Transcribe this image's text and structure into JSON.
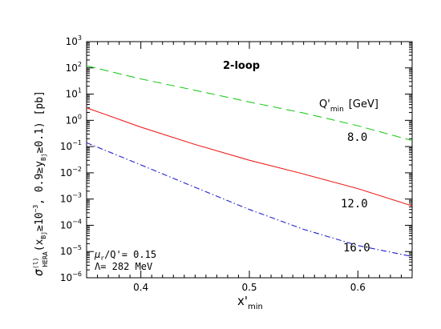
{
  "chart_data": {
    "type": "line",
    "title": "2-loop",
    "xlabel": {
      "main": "x'",
      "sub": "min"
    },
    "ylabel": {
      "sigma": "σ",
      "sup": "(l)",
      "sub": "HERA",
      "paren_open": "(x",
      "bj1": "Bj",
      "mid1": "≥10",
      "exp": "−3",
      "mid2": ",  0.9≥y",
      "bj2": "Bj",
      "end": "≥0.1)  [pb]"
    },
    "xlim": [
      0.35,
      0.65
    ],
    "ylim_exp": [
      -6,
      3
    ],
    "log_y": true,
    "x_ticks": [
      "0.4",
      "0.5",
      "0.6"
    ],
    "y_ticks_exp": [
      "−6",
      "−5",
      "−4",
      "−3",
      "−2",
      "−1",
      "0",
      "1",
      "2",
      "3"
    ],
    "legend_header": {
      "q": "Q'",
      "sub": "min",
      "unit": "[GeV]"
    },
    "series": [
      {
        "name": "8.0",
        "color": "#22cc22",
        "dash": "long-dash",
        "x": [
          0.35,
          0.4,
          0.45,
          0.5,
          0.55,
          0.6,
          0.65
        ],
        "y": [
          120,
          38,
          14,
          5,
          1.9,
          0.62,
          0.17
        ]
      },
      {
        "name": "12.0",
        "color": "#ee2222",
        "dash": "solid",
        "x": [
          0.35,
          0.4,
          0.45,
          0.5,
          0.55,
          0.6,
          0.65
        ],
        "y": [
          3.0,
          0.55,
          0.12,
          0.03,
          0.009,
          0.0025,
          0.00055
        ]
      },
      {
        "name": "16.0",
        "color": "#2222cc",
        "dash": "dash-dot",
        "x": [
          0.35,
          0.4,
          0.45,
          0.5,
          0.55,
          0.6,
          0.65
        ],
        "y": [
          0.14,
          0.02,
          0.0028,
          0.0004,
          7e-05,
          1.7e-05,
          6.5e-06
        ]
      }
    ],
    "params": {
      "mu": "μ",
      "mu_sub": "r",
      "mu_rest": "/Q'= 0.15",
      "lambda": "Λ= 282 MeV"
    },
    "grid": false
  }
}
